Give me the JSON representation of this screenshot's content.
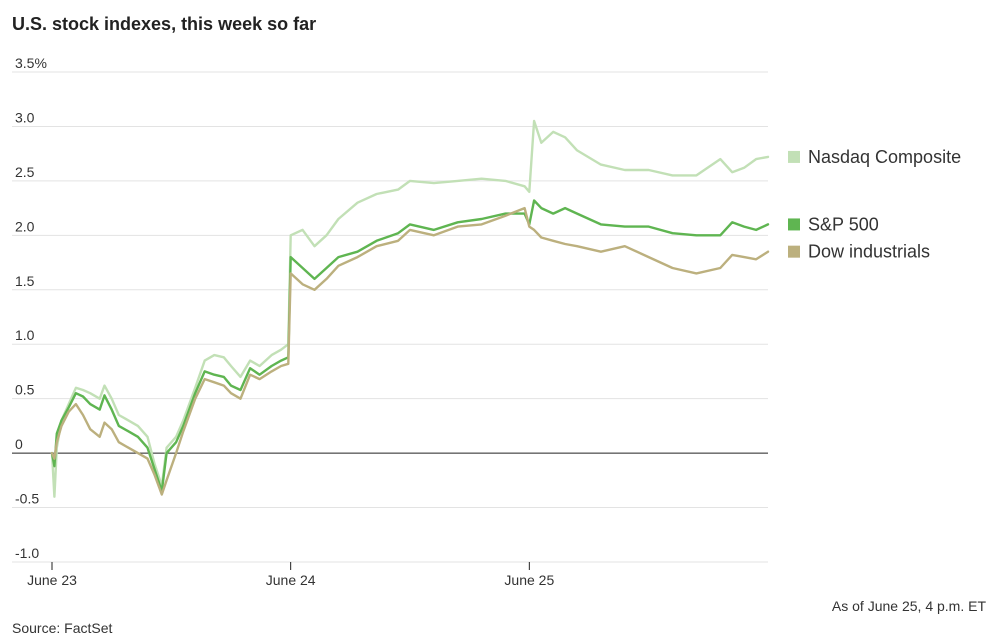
{
  "chart_data": {
    "type": "line",
    "title": "U.S. stock indexes, this week so far",
    "xlabel": "",
    "ylabel": "",
    "ylim": [
      -1.0,
      3.5
    ],
    "xlim": [
      0,
      3
    ],
    "y_ticks": [
      -1.0,
      -0.5,
      0,
      0.5,
      1.0,
      1.5,
      2.0,
      2.5,
      3.0,
      3.5
    ],
    "y_tick_labels": [
      "-1.0",
      "-0.5",
      "0",
      "0.5",
      "1.0",
      "1.5",
      "2.0",
      "2.5",
      "3.0",
      "3.5%"
    ],
    "x_ticks": [
      {
        "label": "June 23",
        "x": 0
      },
      {
        "label": "June 24",
        "x": 1
      },
      {
        "label": "June 25",
        "x": 2
      }
    ],
    "grid": true,
    "legend_position": "right",
    "series": [
      {
        "name": "Nasdaq Composite",
        "color": "#c2e0b6",
        "points": [
          [
            0,
            0
          ],
          [
            0.01,
            -0.4
          ],
          [
            0.02,
            0.05
          ],
          [
            0.04,
            0.3
          ],
          [
            0.07,
            0.45
          ],
          [
            0.1,
            0.6
          ],
          [
            0.13,
            0.58
          ],
          [
            0.16,
            0.55
          ],
          [
            0.2,
            0.5
          ],
          [
            0.22,
            0.62
          ],
          [
            0.25,
            0.5
          ],
          [
            0.28,
            0.35
          ],
          [
            0.32,
            0.3
          ],
          [
            0.36,
            0.25
          ],
          [
            0.4,
            0.15
          ],
          [
            0.43,
            -0.1
          ],
          [
            0.46,
            -0.3
          ],
          [
            0.48,
            0.05
          ],
          [
            0.52,
            0.15
          ],
          [
            0.55,
            0.3
          ],
          [
            0.6,
            0.6
          ],
          [
            0.64,
            0.85
          ],
          [
            0.68,
            0.9
          ],
          [
            0.72,
            0.88
          ],
          [
            0.75,
            0.8
          ],
          [
            0.79,
            0.7
          ],
          [
            0.83,
            0.85
          ],
          [
            0.87,
            0.8
          ],
          [
            0.92,
            0.9
          ],
          [
            0.96,
            0.95
          ],
          [
            0.99,
            1.0
          ],
          [
            1.0,
            2.0
          ],
          [
            1.05,
            2.05
          ],
          [
            1.1,
            1.9
          ],
          [
            1.15,
            2.0
          ],
          [
            1.2,
            2.15
          ],
          [
            1.28,
            2.3
          ],
          [
            1.36,
            2.38
          ],
          [
            1.45,
            2.42
          ],
          [
            1.5,
            2.5
          ],
          [
            1.6,
            2.48
          ],
          [
            1.7,
            2.5
          ],
          [
            1.8,
            2.52
          ],
          [
            1.9,
            2.5
          ],
          [
            1.98,
            2.45
          ],
          [
            2.0,
            2.4
          ],
          [
            2.02,
            3.05
          ],
          [
            2.05,
            2.85
          ],
          [
            2.1,
            2.95
          ],
          [
            2.15,
            2.9
          ],
          [
            2.2,
            2.78
          ],
          [
            2.3,
            2.65
          ],
          [
            2.4,
            2.6
          ],
          [
            2.5,
            2.6
          ],
          [
            2.6,
            2.55
          ],
          [
            2.7,
            2.55
          ],
          [
            2.8,
            2.7
          ],
          [
            2.85,
            2.58
          ],
          [
            2.9,
            2.62
          ],
          [
            2.95,
            2.7
          ],
          [
            3.0,
            2.72
          ]
        ]
      },
      {
        "name": "S&P 500",
        "color": "#5fb551",
        "points": [
          [
            0,
            0
          ],
          [
            0.01,
            -0.12
          ],
          [
            0.02,
            0.18
          ],
          [
            0.04,
            0.3
          ],
          [
            0.07,
            0.42
          ],
          [
            0.1,
            0.55
          ],
          [
            0.13,
            0.52
          ],
          [
            0.16,
            0.45
          ],
          [
            0.2,
            0.4
          ],
          [
            0.22,
            0.53
          ],
          [
            0.25,
            0.4
          ],
          [
            0.28,
            0.25
          ],
          [
            0.32,
            0.2
          ],
          [
            0.36,
            0.15
          ],
          [
            0.4,
            0.05
          ],
          [
            0.43,
            -0.15
          ],
          [
            0.46,
            -0.35
          ],
          [
            0.48,
            0.0
          ],
          [
            0.52,
            0.1
          ],
          [
            0.55,
            0.25
          ],
          [
            0.6,
            0.55
          ],
          [
            0.64,
            0.75
          ],
          [
            0.68,
            0.72
          ],
          [
            0.72,
            0.7
          ],
          [
            0.75,
            0.62
          ],
          [
            0.79,
            0.58
          ],
          [
            0.83,
            0.78
          ],
          [
            0.87,
            0.72
          ],
          [
            0.92,
            0.8
          ],
          [
            0.96,
            0.85
          ],
          [
            0.99,
            0.88
          ],
          [
            1.0,
            1.8
          ],
          [
            1.05,
            1.7
          ],
          [
            1.1,
            1.6
          ],
          [
            1.15,
            1.7
          ],
          [
            1.2,
            1.8
          ],
          [
            1.28,
            1.85
          ],
          [
            1.36,
            1.95
          ],
          [
            1.45,
            2.02
          ],
          [
            1.5,
            2.1
          ],
          [
            1.6,
            2.05
          ],
          [
            1.7,
            2.12
          ],
          [
            1.8,
            2.15
          ],
          [
            1.9,
            2.2
          ],
          [
            1.98,
            2.2
          ],
          [
            2.0,
            2.1
          ],
          [
            2.02,
            2.32
          ],
          [
            2.05,
            2.25
          ],
          [
            2.1,
            2.2
          ],
          [
            2.15,
            2.25
          ],
          [
            2.2,
            2.2
          ],
          [
            2.3,
            2.1
          ],
          [
            2.4,
            2.08
          ],
          [
            2.5,
            2.08
          ],
          [
            2.6,
            2.02
          ],
          [
            2.7,
            2.0
          ],
          [
            2.8,
            2.0
          ],
          [
            2.85,
            2.12
          ],
          [
            2.9,
            2.08
          ],
          [
            2.95,
            2.05
          ],
          [
            3.0,
            2.1
          ]
        ]
      },
      {
        "name": "Dow industrials",
        "color": "#bcb07e",
        "points": [
          [
            0,
            0
          ],
          [
            0.01,
            -0.05
          ],
          [
            0.02,
            0.1
          ],
          [
            0.04,
            0.25
          ],
          [
            0.07,
            0.38
          ],
          [
            0.1,
            0.45
          ],
          [
            0.13,
            0.35
          ],
          [
            0.16,
            0.22
          ],
          [
            0.2,
            0.15
          ],
          [
            0.22,
            0.28
          ],
          [
            0.25,
            0.22
          ],
          [
            0.28,
            0.1
          ],
          [
            0.32,
            0.05
          ],
          [
            0.36,
            0.0
          ],
          [
            0.4,
            -0.05
          ],
          [
            0.43,
            -0.2
          ],
          [
            0.46,
            -0.38
          ],
          [
            0.48,
            -0.25
          ],
          [
            0.52,
            0.0
          ],
          [
            0.55,
            0.2
          ],
          [
            0.6,
            0.5
          ],
          [
            0.64,
            0.68
          ],
          [
            0.68,
            0.65
          ],
          [
            0.72,
            0.62
          ],
          [
            0.75,
            0.55
          ],
          [
            0.79,
            0.5
          ],
          [
            0.83,
            0.72
          ],
          [
            0.87,
            0.68
          ],
          [
            0.92,
            0.75
          ],
          [
            0.96,
            0.8
          ],
          [
            0.99,
            0.82
          ],
          [
            1.0,
            1.65
          ],
          [
            1.05,
            1.55
          ],
          [
            1.1,
            1.5
          ],
          [
            1.15,
            1.6
          ],
          [
            1.2,
            1.72
          ],
          [
            1.28,
            1.8
          ],
          [
            1.36,
            1.9
          ],
          [
            1.45,
            1.95
          ],
          [
            1.5,
            2.05
          ],
          [
            1.6,
            2.0
          ],
          [
            1.7,
            2.08
          ],
          [
            1.8,
            2.1
          ],
          [
            1.9,
            2.18
          ],
          [
            1.98,
            2.25
          ],
          [
            2.0,
            2.08
          ],
          [
            2.02,
            2.05
          ],
          [
            2.05,
            1.98
          ],
          [
            2.1,
            1.95
          ],
          [
            2.15,
            1.92
          ],
          [
            2.2,
            1.9
          ],
          [
            2.3,
            1.85
          ],
          [
            2.4,
            1.9
          ],
          [
            2.5,
            1.8
          ],
          [
            2.6,
            1.7
          ],
          [
            2.7,
            1.65
          ],
          [
            2.8,
            1.7
          ],
          [
            2.85,
            1.82
          ],
          [
            2.9,
            1.8
          ],
          [
            2.95,
            1.78
          ],
          [
            3.0,
            1.85
          ]
        ]
      }
    ],
    "legend": [
      {
        "label": "Nasdaq Composite",
        "color": "#c2e0b6",
        "value": 2.72
      },
      {
        "label": "S&P 500",
        "color": "#5fb551",
        "value": 2.1
      },
      {
        "label": "Dow industrials",
        "color": "#bcb07e",
        "value": 1.85
      }
    ],
    "as_of_note": "As of June 25, 4 p.m. ET",
    "source": "Source: FactSet"
  }
}
